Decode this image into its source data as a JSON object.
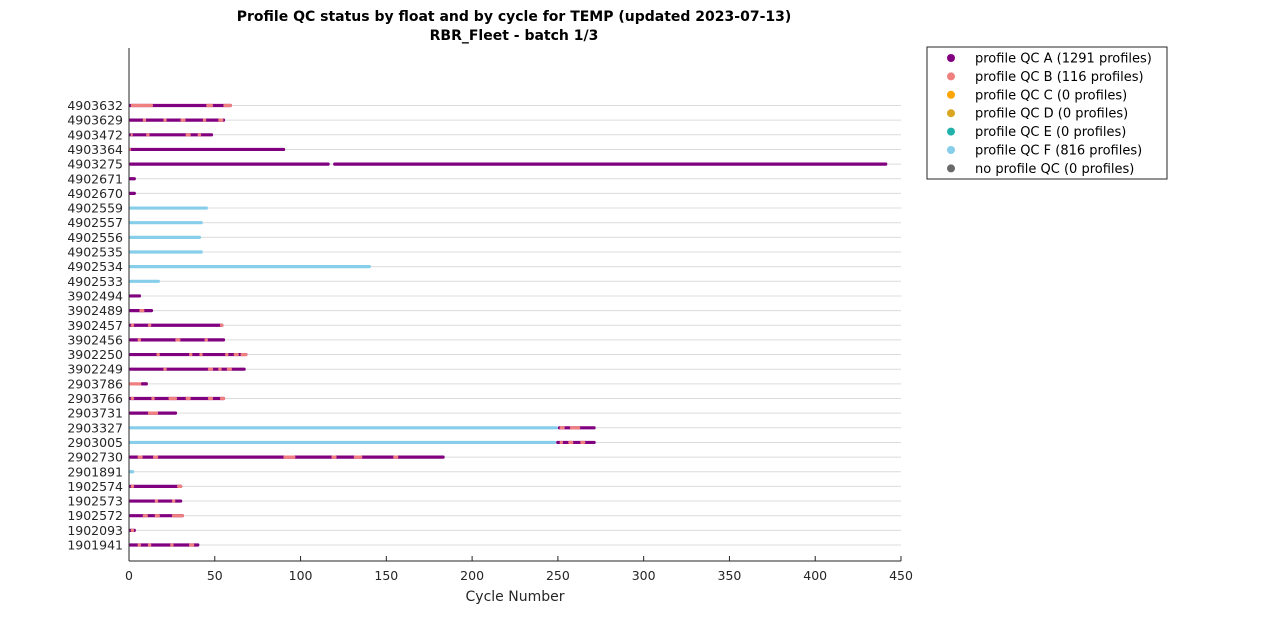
{
  "chart_data": {
    "type": "scatter",
    "title": "Profile QC status by float and by cycle for TEMP (updated 2023-07-13)",
    "subtitle": "RBR_Fleet - batch 1/3",
    "xlabel": "Cycle Number",
    "ylabel": "",
    "xlim": [
      0,
      450
    ],
    "xticks": [
      0,
      50,
      100,
      150,
      200,
      250,
      300,
      350,
      400,
      450
    ],
    "grid": "horizontal",
    "legend_position": "outside-top-right",
    "legend": [
      {
        "key": "A",
        "label": "profile QC A (1291 profiles)",
        "color": "#800080"
      },
      {
        "key": "B",
        "label": "profile QC B (116 profiles)",
        "color": "#f08080"
      },
      {
        "key": "C",
        "label": "profile QC C (0 profiles)",
        "color": "#ffa500"
      },
      {
        "key": "D",
        "label": "profile QC D (0 profiles)",
        "color": "#daa520"
      },
      {
        "key": "E",
        "label": "profile QC E (0 profiles)",
        "color": "#20b2aa"
      },
      {
        "key": "F",
        "label": "profile QC F (816 profiles)",
        "color": "#87ceeb"
      },
      {
        "key": "N",
        "label": "no profile QC (0 profiles)",
        "color": "#696969"
      }
    ],
    "floats": [
      {
        "id": "4903632",
        "segments": [
          [
            0,
            60,
            "A"
          ],
          [
            1,
            14,
            "B"
          ],
          [
            45,
            49,
            "B"
          ],
          [
            55,
            60,
            "B"
          ]
        ]
      },
      {
        "id": "4903629",
        "segments": [
          [
            0,
            56,
            "A"
          ],
          [
            8,
            10,
            "B"
          ],
          [
            20,
            22,
            "B"
          ],
          [
            30,
            33,
            "B"
          ],
          [
            43,
            45,
            "B"
          ],
          [
            52,
            55,
            "B"
          ]
        ]
      },
      {
        "id": "4903472",
        "segments": [
          [
            0,
            49,
            "A"
          ],
          [
            1,
            2,
            "B"
          ],
          [
            10,
            12,
            "B"
          ],
          [
            33,
            36,
            "B"
          ],
          [
            40,
            42,
            "B"
          ]
        ]
      },
      {
        "id": "4903364",
        "segments": [
          [
            0,
            91,
            "A"
          ],
          [
            0,
            1,
            "B"
          ]
        ]
      },
      {
        "id": "4903275",
        "segments": [
          [
            0,
            117,
            "A"
          ],
          [
            119,
            442,
            "A"
          ]
        ]
      },
      {
        "id": "4902671",
        "segments": [
          [
            0,
            4,
            "A"
          ]
        ]
      },
      {
        "id": "4902670",
        "segments": [
          [
            0,
            4,
            "A"
          ]
        ]
      },
      {
        "id": "4902559",
        "segments": [
          [
            0,
            46,
            "F"
          ]
        ]
      },
      {
        "id": "4902557",
        "segments": [
          [
            0,
            43,
            "F"
          ]
        ]
      },
      {
        "id": "4902556",
        "segments": [
          [
            0,
            42,
            "F"
          ]
        ]
      },
      {
        "id": "4902535",
        "segments": [
          [
            0,
            43,
            "F"
          ]
        ]
      },
      {
        "id": "4902534",
        "segments": [
          [
            0,
            141,
            "F"
          ]
        ]
      },
      {
        "id": "4902533",
        "segments": [
          [
            0,
            18,
            "F"
          ]
        ]
      },
      {
        "id": "3902494",
        "segments": [
          [
            0,
            7,
            "A"
          ]
        ]
      },
      {
        "id": "3902489",
        "segments": [
          [
            0,
            14,
            "A"
          ],
          [
            6,
            9,
            "B"
          ]
        ]
      },
      {
        "id": "3902457",
        "segments": [
          [
            0,
            55,
            "A"
          ],
          [
            1,
            3,
            "B"
          ],
          [
            11,
            13,
            "B"
          ],
          [
            53,
            55,
            "B"
          ]
        ]
      },
      {
        "id": "3902456",
        "segments": [
          [
            0,
            56,
            "A"
          ],
          [
            5,
            7,
            "B"
          ],
          [
            27,
            30,
            "B"
          ],
          [
            44,
            46,
            "B"
          ]
        ]
      },
      {
        "id": "3902250",
        "segments": [
          [
            0,
            69,
            "A"
          ],
          [
            16,
            18,
            "B"
          ],
          [
            35,
            37,
            "B"
          ],
          [
            41,
            43,
            "B"
          ],
          [
            56,
            58,
            "B"
          ],
          [
            61,
            64,
            "B"
          ],
          [
            65,
            69,
            "B"
          ]
        ]
      },
      {
        "id": "3902249",
        "segments": [
          [
            0,
            68,
            "A"
          ],
          [
            20,
            22,
            "B"
          ],
          [
            46,
            49,
            "B"
          ],
          [
            52,
            54,
            "B"
          ],
          [
            57,
            60,
            "B"
          ]
        ]
      },
      {
        "id": "2903786",
        "segments": [
          [
            0,
            11,
            "B"
          ],
          [
            7,
            11,
            "A"
          ]
        ]
      },
      {
        "id": "2903766",
        "segments": [
          [
            0,
            56,
            "A"
          ],
          [
            1,
            3,
            "B"
          ],
          [
            13,
            15,
            "B"
          ],
          [
            23,
            28,
            "B"
          ],
          [
            33,
            36,
            "B"
          ],
          [
            46,
            49,
            "B"
          ],
          [
            53,
            56,
            "B"
          ]
        ]
      },
      {
        "id": "2903731",
        "segments": [
          [
            0,
            28,
            "A"
          ],
          [
            11,
            17,
            "B"
          ]
        ]
      },
      {
        "id": "2903327",
        "segments": [
          [
            0,
            250,
            "F"
          ],
          [
            250,
            272,
            "A"
          ],
          [
            251,
            254,
            "B"
          ],
          [
            257,
            263,
            "B"
          ]
        ]
      },
      {
        "id": "2903005",
        "segments": [
          [
            0,
            249,
            "F"
          ],
          [
            249,
            272,
            "A"
          ],
          [
            251,
            253,
            "B"
          ],
          [
            256,
            259,
            "B"
          ],
          [
            263,
            266,
            "B"
          ]
        ]
      },
      {
        "id": "2902730",
        "segments": [
          [
            0,
            184,
            "A"
          ],
          [
            5,
            8,
            "B"
          ],
          [
            14,
            17,
            "B"
          ],
          [
            90,
            97,
            "B"
          ],
          [
            118,
            121,
            "B"
          ],
          [
            131,
            136,
            "B"
          ],
          [
            154,
            157,
            "B"
          ]
        ]
      },
      {
        "id": "2901891",
        "segments": [
          [
            0,
            3,
            "F"
          ]
        ]
      },
      {
        "id": "1902574",
        "segments": [
          [
            0,
            31,
            "A"
          ],
          [
            1,
            3,
            "B"
          ],
          [
            28,
            31,
            "B"
          ]
        ]
      },
      {
        "id": "1902573",
        "segments": [
          [
            0,
            31,
            "A"
          ],
          [
            15,
            17,
            "B"
          ],
          [
            25,
            27,
            "B"
          ]
        ]
      },
      {
        "id": "1902572",
        "segments": [
          [
            0,
            32,
            "A"
          ],
          [
            8,
            11,
            "B"
          ],
          [
            15,
            18,
            "B"
          ],
          [
            25,
            32,
            "B"
          ]
        ]
      },
      {
        "id": "1902093",
        "segments": [
          [
            0,
            4,
            "A"
          ],
          [
            1,
            3,
            "B"
          ]
        ]
      },
      {
        "id": "1901941",
        "segments": [
          [
            0,
            41,
            "A"
          ],
          [
            5,
            7,
            "B"
          ],
          [
            11,
            13,
            "B"
          ],
          [
            24,
            26,
            "B"
          ],
          [
            35,
            38,
            "B"
          ]
        ]
      }
    ]
  }
}
